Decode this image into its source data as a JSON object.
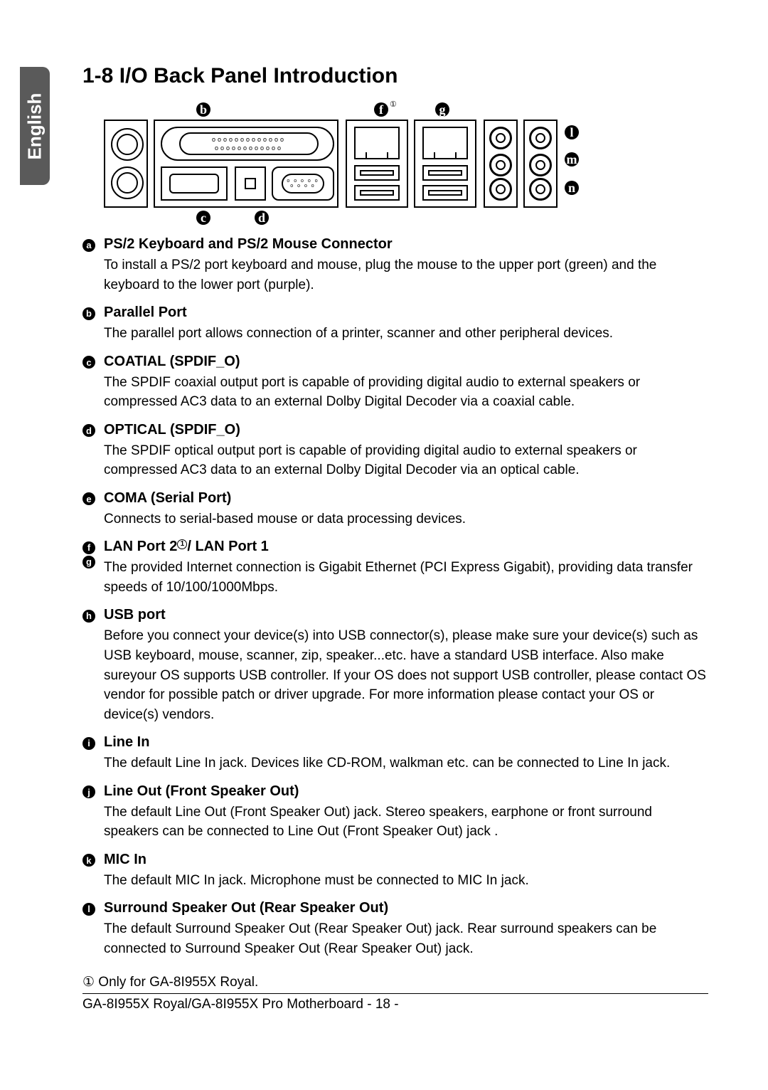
{
  "lang_tab": "English",
  "heading": "1-8    I/O Back Panel Introduction",
  "callouts": {
    "a": "a",
    "b": "b",
    "c": "c",
    "d": "d",
    "e": "e",
    "f": "f",
    "g": "g",
    "h": "h",
    "i": "i",
    "j": "j",
    "k": "k",
    "l": "l",
    "m": "m",
    "n": "n"
  },
  "diagram_sup": "①",
  "items": [
    {
      "marker": "a",
      "title": "PS/2 Keyboard and PS/2 Mouse Connector",
      "desc": "To install a PS/2 port keyboard and mouse, plug the mouse to the upper port (green) and the keyboard to the lower port (purple)."
    },
    {
      "marker": "b",
      "title": "Parallel Port",
      "desc": "The parallel port allows connection of a printer, scanner and other peripheral devices."
    },
    {
      "marker": "c",
      "title": "COATIAL (SPDIF_O)",
      "desc": "The SPDIF coaxial output port is capable of providing digital audio to external speakers or compressed AC3 data to an external Dolby Digital Decoder via a coaxial cable."
    },
    {
      "marker": "d",
      "title": "OPTICAL (SPDIF_O)",
      "desc": "The SPDIF optical output port is capable of providing digital audio to external speakers or compressed AC3 data to an external Dolby Digital Decoder via an optical cable."
    },
    {
      "marker": "e",
      "title": "COMA (Serial Port)",
      "desc": "Connects to serial-based mouse or data processing devices."
    },
    {
      "marker": "fg",
      "title": "LAN Port 2①/ LAN Port 1",
      "desc": "The provided Internet connection is Gigabit Ethernet (PCI Express Gigabit), providing data transfer speeds of 10/100/1000Mbps."
    },
    {
      "marker": "h",
      "title": "USB port",
      "desc": "Before you connect your device(s) into USB connector(s), please make sure your device(s) such as USB keyboard, mouse, scanner, zip, speaker...etc. have a standard USB interface. Also make sureyour OS supports USB controller. If your OS does not support USB controller, please contact OS vendor for possible patch or driver upgrade. For more information please contact your OS or device(s) vendors."
    },
    {
      "marker": "i",
      "title": "Line In",
      "desc": "The default Line In jack. Devices like CD-ROM, walkman etc. can be connected to Line In jack."
    },
    {
      "marker": "j",
      "title": "Line Out (Front Speaker Out)",
      "desc": "The default Line Out (Front Speaker Out) jack. Stereo speakers, earphone or front surround speakers can be connected to Line Out (Front Speaker Out) jack ."
    },
    {
      "marker": "k",
      "title": "MIC In",
      "desc": "The default MIC In jack. Microphone must be connected to MIC In jack."
    },
    {
      "marker": "l",
      "title": "Surround Speaker Out (Rear Speaker Out)",
      "desc": "The default Surround Speaker Out (Rear Speaker Out) jack. Rear surround speakers can be connected to Surround Speaker Out (Rear Speaker Out) jack."
    }
  ],
  "footnote": "① Only for GA-8I955X Royal.",
  "footer": "GA-8I955X Royal/GA-8I955X Pro Motherboard    - 18 -"
}
